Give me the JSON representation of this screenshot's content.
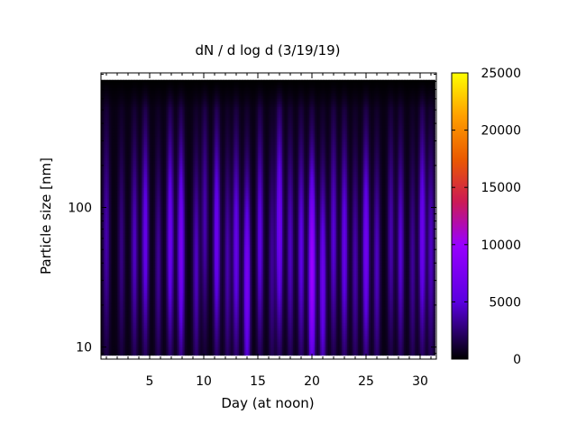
{
  "chart_data": {
    "type": "heatmap",
    "title": "dN / d log d (3/19/19)",
    "xlabel": "Day (at noon)",
    "ylabel": "Particle size [nm]",
    "x_scale": "linear",
    "y_scale": "log",
    "xlim": [
      0.5,
      31.5
    ],
    "ylim": [
      8.2,
      920
    ],
    "x_ticks": [
      5,
      10,
      15,
      20,
      25,
      30
    ],
    "y_ticks": [
      10,
      100
    ],
    "grid": false,
    "colorbar": {
      "range": [
        0,
        25000
      ],
      "ticks": [
        0,
        5000,
        10000,
        15000,
        20000,
        25000
      ],
      "colors": [
        "#000000",
        "#5a00e0",
        "#9900ff",
        "#cc1a55",
        "#ea5a00",
        "#ffa000",
        "#ffff00"
      ],
      "stops": [
        0,
        0.2,
        0.4,
        0.55,
        0.7,
        0.85,
        1
      ]
    },
    "data_extent": {
      "x": [
        0.5,
        31.3
      ],
      "size_nm": [
        9,
        820
      ]
    },
    "background_level": 400,
    "plumes": [
      {
        "day": 1.0,
        "peak": 3500,
        "center_nm": 60
      },
      {
        "day": 2.4,
        "peak": 2500,
        "center_nm": 50
      },
      {
        "day": 3.6,
        "peak": 4000,
        "center_nm": 50
      },
      {
        "day": 4.6,
        "peak": 5500,
        "center_nm": 60
      },
      {
        "day": 5.8,
        "peak": 3000,
        "center_nm": 40
      },
      {
        "day": 6.9,
        "peak": 6000,
        "center_nm": 60
      },
      {
        "day": 7.9,
        "peak": 7000,
        "center_nm": 50
      },
      {
        "day": 9.3,
        "peak": 4000,
        "center_nm": 40
      },
      {
        "day": 10.1,
        "peak": 3500,
        "center_nm": 80
      },
      {
        "day": 11.2,
        "peak": 6000,
        "center_nm": 60
      },
      {
        "day": 12.2,
        "peak": 3500,
        "center_nm": 40
      },
      {
        "day": 13.0,
        "peak": 5500,
        "center_nm": 50
      },
      {
        "day": 14.0,
        "peak": 7000,
        "center_nm": 30
      },
      {
        "day": 15.2,
        "peak": 5000,
        "center_nm": 60
      },
      {
        "day": 16.3,
        "peak": 3000,
        "center_nm": 40
      },
      {
        "day": 17.0,
        "peak": 6500,
        "center_nm": 70
      },
      {
        "day": 18.0,
        "peak": 4000,
        "center_nm": 50
      },
      {
        "day": 19.0,
        "peak": 5000,
        "center_nm": 50
      },
      {
        "day": 20.0,
        "peak": 10000,
        "center_nm": 35
      },
      {
        "day": 21.0,
        "peak": 6000,
        "center_nm": 30
      },
      {
        "day": 22.0,
        "peak": 4500,
        "center_nm": 60
      },
      {
        "day": 23.0,
        "peak": 5500,
        "center_nm": 50
      },
      {
        "day": 24.0,
        "peak": 3500,
        "center_nm": 40
      },
      {
        "day": 25.0,
        "peak": 6500,
        "center_nm": 50
      },
      {
        "day": 26.0,
        "peak": 4000,
        "center_nm": 40
      },
      {
        "day": 27.3,
        "peak": 3500,
        "center_nm": 60
      },
      {
        "day": 28.2,
        "peak": 4500,
        "center_nm": 50
      },
      {
        "day": 29.3,
        "peak": 3000,
        "center_nm": 40
      },
      {
        "day": 30.2,
        "peak": 6000,
        "center_nm": 60
      },
      {
        "day": 31.0,
        "peak": 4000,
        "center_nm": 50
      }
    ]
  }
}
